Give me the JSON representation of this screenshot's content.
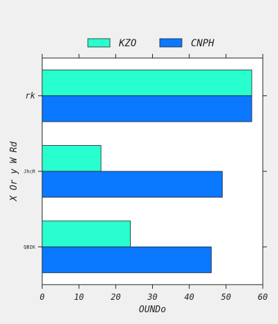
{
  "chart_data": {
    "type": "bar",
    "orientation": "horizontal",
    "categories": [
      "QBIK",
      "JhcR",
      "rk"
    ],
    "category_label_styles": [
      "small",
      "small",
      "italic"
    ],
    "series": [
      {
        "name": "KZO",
        "values": [
          24,
          16,
          57
        ],
        "color": "#29ffce"
      },
      {
        "name": "CNPH",
        "values": [
          46,
          49,
          57
        ],
        "color": "#0a78ff"
      }
    ],
    "xlabel": "OUNDo",
    "ylabel": "X Or  y W Rd",
    "xlim": [
      0,
      60
    ],
    "xticks": [
      0,
      10,
      20,
      30,
      40,
      50,
      60
    ],
    "grid": false,
    "legend": "top-center, outside"
  }
}
